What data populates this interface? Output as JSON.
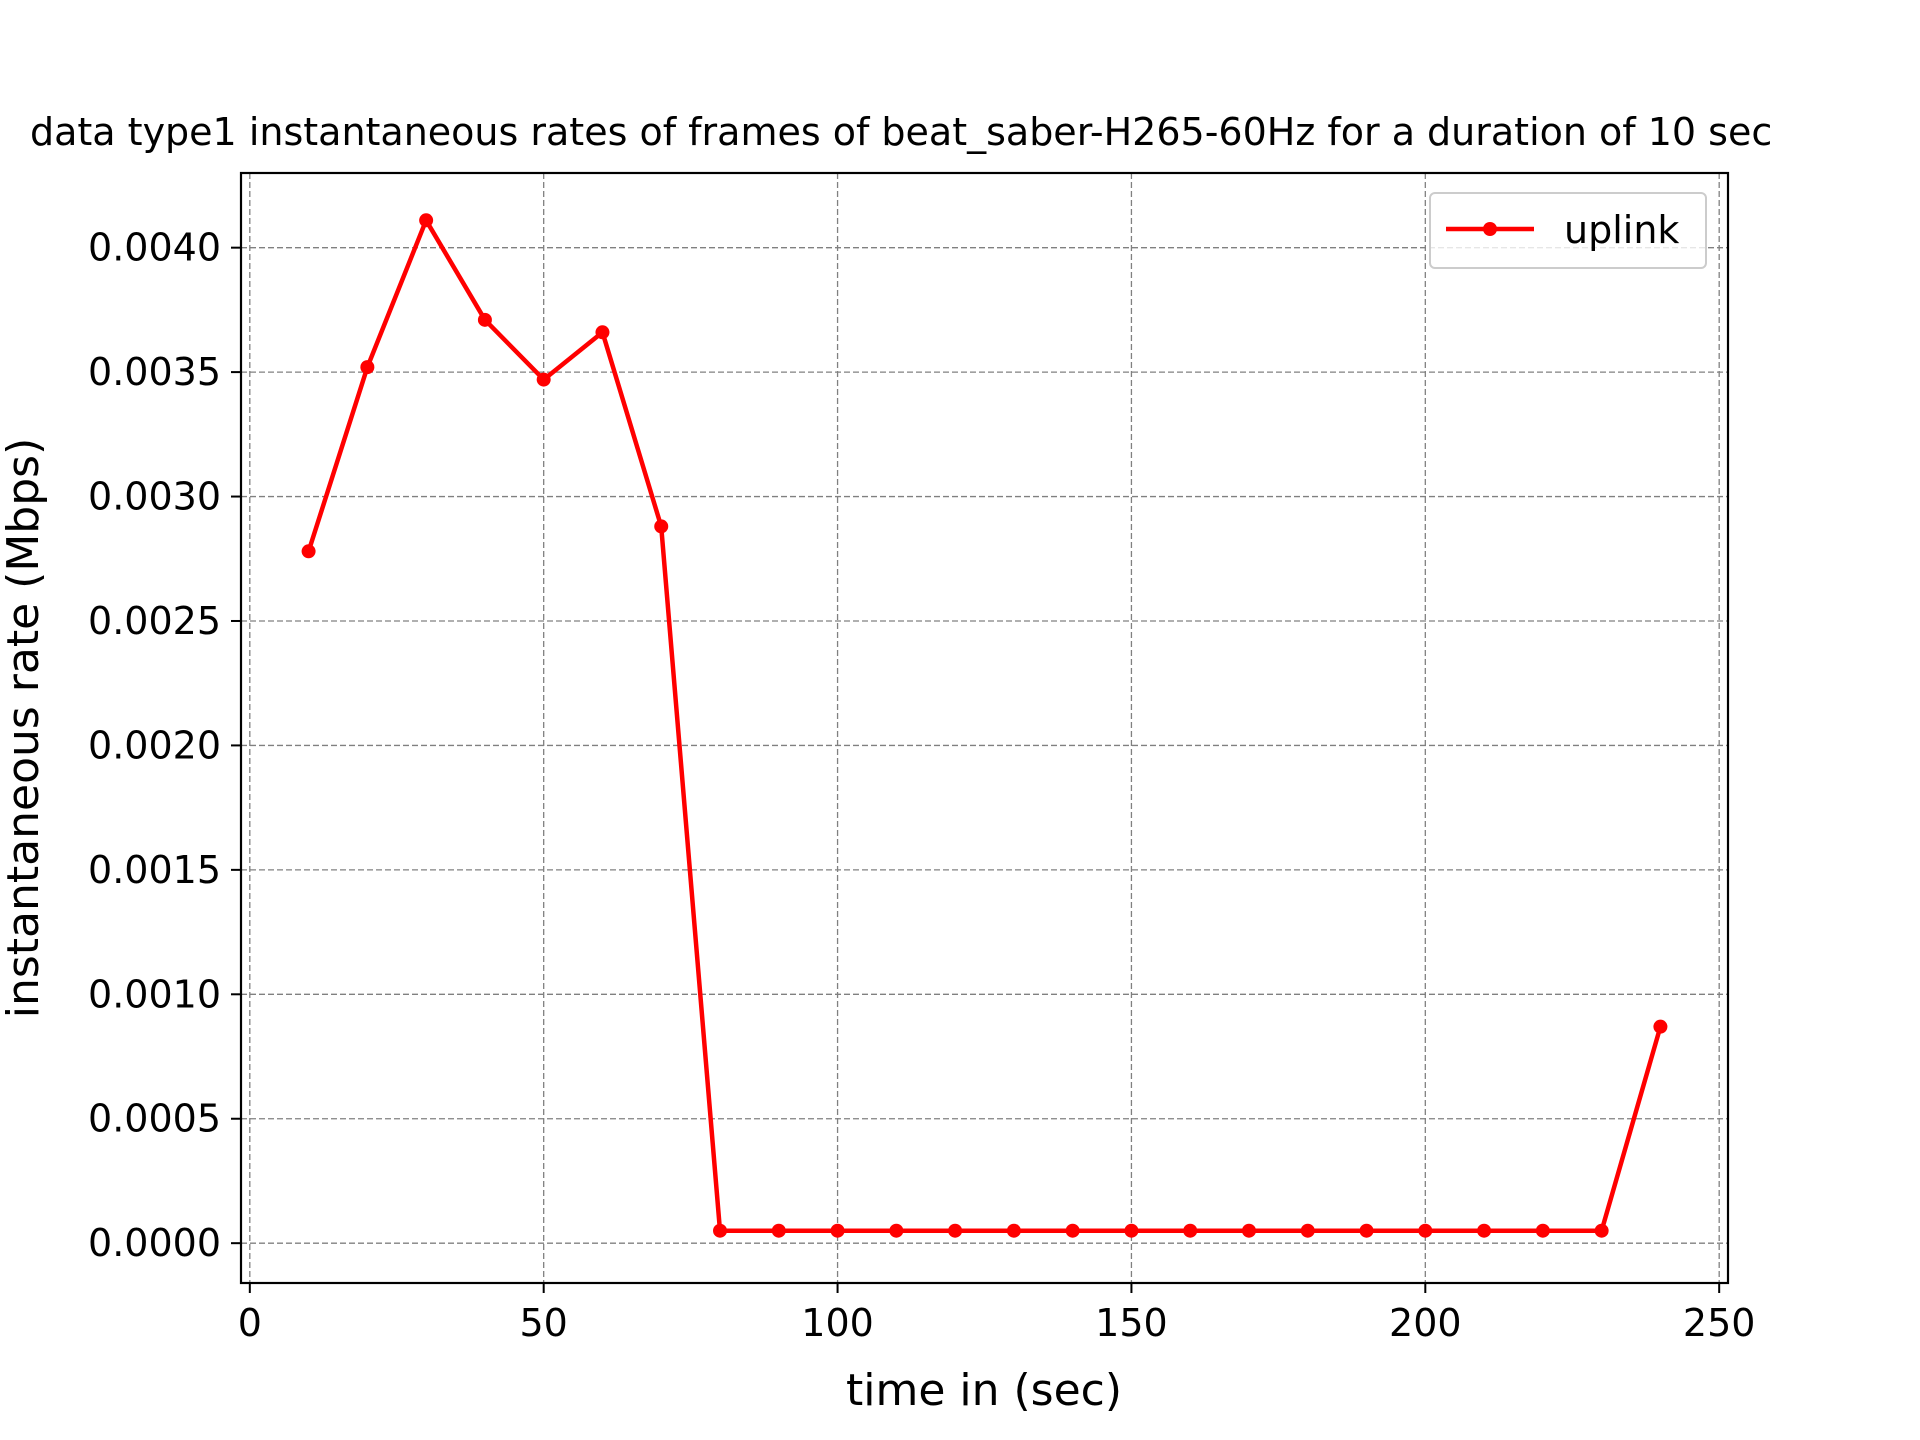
{
  "chart_data": {
    "type": "line",
    "title": "data type1 instantaneous rates of frames of beat_saber-H265-60Hz for a duration of 10 sec",
    "xlabel": "time in (sec)",
    "ylabel": "instantaneous rate (Mbps)",
    "xlim": [
      -1.5,
      251.5
    ],
    "ylim": [
      -0.00016,
      0.0043
    ],
    "xticks": [
      0,
      50,
      100,
      150,
      200,
      250
    ],
    "xtick_labels": [
      "0",
      "50",
      "100",
      "150",
      "200",
      "250"
    ],
    "yticks": [
      0.0,
      0.0005,
      0.001,
      0.0015,
      0.002,
      0.0025,
      0.003,
      0.0035,
      0.004
    ],
    "ytick_labels": [
      "0.0000",
      "0.0005",
      "0.0010",
      "0.0015",
      "0.0020",
      "0.0025",
      "0.0030",
      "0.0035",
      "0.0040"
    ],
    "grid": true,
    "legend_position": "top-right",
    "series": [
      {
        "name": "uplink",
        "color": "#ff0000",
        "marker": "circle",
        "x": [
          10,
          20,
          30,
          40,
          50,
          60,
          70,
          80,
          90,
          100,
          110,
          120,
          130,
          140,
          150,
          160,
          170,
          180,
          190,
          200,
          210,
          220,
          230,
          240
        ],
        "y": [
          0.00278,
          0.00352,
          0.00411,
          0.00371,
          0.00347,
          0.00366,
          0.00288,
          5e-05,
          5e-05,
          5e-05,
          5e-05,
          5e-05,
          5e-05,
          5e-05,
          5e-05,
          5e-05,
          5e-05,
          5e-05,
          5e-05,
          5e-05,
          5e-05,
          5e-05,
          5e-05,
          0.00087
        ]
      }
    ]
  }
}
